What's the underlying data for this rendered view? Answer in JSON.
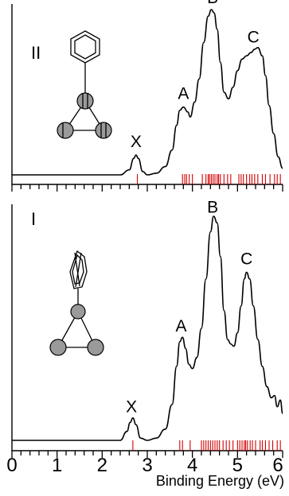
{
  "chart_data": {
    "type": "line",
    "xlabel": "Binding Energy (eV)",
    "xlim": [
      0,
      6
    ],
    "x_ticks": [
      "0",
      "1",
      "2",
      "3",
      "4",
      "5",
      "6"
    ],
    "panels": [
      {
        "id": "II",
        "label": "II",
        "peak_labels": [
          {
            "text": "X",
            "x": 2.75
          },
          {
            "text": "A",
            "x": 3.8
          },
          {
            "text": "B",
            "x": 4.45
          },
          {
            "text": "C",
            "x": 5.35
          }
        ],
        "spectrum": {
          "x": [
            2.4,
            2.6,
            2.7,
            2.75,
            2.8,
            2.9,
            3.0,
            3.2,
            3.4,
            3.55,
            3.65,
            3.72,
            3.8,
            3.9,
            3.95,
            4.05,
            4.15,
            4.25,
            4.35,
            4.42,
            4.48,
            4.55,
            4.62,
            4.7,
            4.8,
            4.9,
            5.0,
            5.1,
            5.2,
            5.3,
            5.38,
            5.45,
            5.55,
            5.62,
            5.7,
            5.8,
            5.9,
            6.0
          ],
          "y": [
            0.0,
            0.03,
            0.1,
            0.12,
            0.1,
            0.02,
            0.0,
            0.01,
            0.05,
            0.15,
            0.3,
            0.39,
            0.41,
            0.38,
            0.35,
            0.44,
            0.58,
            0.8,
            0.96,
            1.0,
            0.98,
            0.88,
            0.68,
            0.5,
            0.46,
            0.53,
            0.63,
            0.7,
            0.72,
            0.74,
            0.76,
            0.77,
            0.72,
            0.6,
            0.42,
            0.25,
            0.11,
            0.04
          ]
        },
        "sticks": [
          2.78,
          3.78,
          3.83,
          3.87,
          3.93,
          4.0,
          4.22,
          4.3,
          4.35,
          4.38,
          4.42,
          4.46,
          4.5,
          4.55,
          4.58,
          4.62,
          4.7,
          4.78,
          4.85,
          5.03,
          5.08,
          5.13,
          5.2,
          5.27,
          5.32,
          5.38,
          5.45,
          5.55,
          5.62,
          5.72,
          5.82,
          5.88,
          5.95
        ]
      },
      {
        "id": "I",
        "label": "I",
        "peak_labels": [
          {
            "text": "X",
            "x": 2.65
          },
          {
            "text": "A",
            "x": 3.75
          },
          {
            "text": "B",
            "x": 4.45
          },
          {
            "text": "C",
            "x": 5.2
          }
        ],
        "spectrum": {
          "x": [
            2.4,
            2.55,
            2.62,
            2.68,
            2.75,
            2.85,
            3.0,
            3.2,
            3.4,
            3.55,
            3.65,
            3.72,
            3.78,
            3.85,
            3.92,
            4.0,
            4.1,
            4.2,
            4.3,
            4.4,
            4.47,
            4.55,
            4.62,
            4.7,
            4.78,
            4.85,
            4.92,
            5.0,
            5.08,
            5.15,
            5.2,
            5.27,
            5.35,
            5.45,
            5.55,
            5.65,
            5.75,
            5.82,
            5.88,
            5.95,
            6.0
          ],
          "y": [
            0.0,
            0.04,
            0.08,
            0.1,
            0.07,
            0.01,
            0.0,
            0.01,
            0.05,
            0.16,
            0.33,
            0.44,
            0.46,
            0.41,
            0.34,
            0.32,
            0.37,
            0.5,
            0.72,
            0.93,
            1.0,
            0.97,
            0.82,
            0.58,
            0.45,
            0.43,
            0.42,
            0.48,
            0.6,
            0.72,
            0.75,
            0.72,
            0.6,
            0.45,
            0.33,
            0.24,
            0.19,
            0.2,
            0.15,
            0.18,
            0.12
          ]
        },
        "sticks": [
          2.68,
          3.72,
          3.78,
          3.95,
          4.2,
          4.25,
          4.3,
          4.35,
          4.4,
          4.45,
          4.5,
          4.55,
          4.6,
          4.68,
          4.75,
          4.82,
          4.9,
          5.0,
          5.05,
          5.1,
          5.15,
          5.18,
          5.22,
          5.28,
          5.33,
          5.4,
          5.5,
          5.55,
          5.62,
          5.7,
          5.78,
          5.88,
          5.95
        ]
      }
    ]
  },
  "colors": {
    "spectrum": "#000000",
    "sticks": "#d40000",
    "atom_fill": "#9a9a9a"
  },
  "icons": {
    "panel_II_structure": "phenyl-cyclopropyl-structure-icon",
    "panel_I_structure": "tilted-phenyl-cyclopropyl-structure-icon"
  }
}
